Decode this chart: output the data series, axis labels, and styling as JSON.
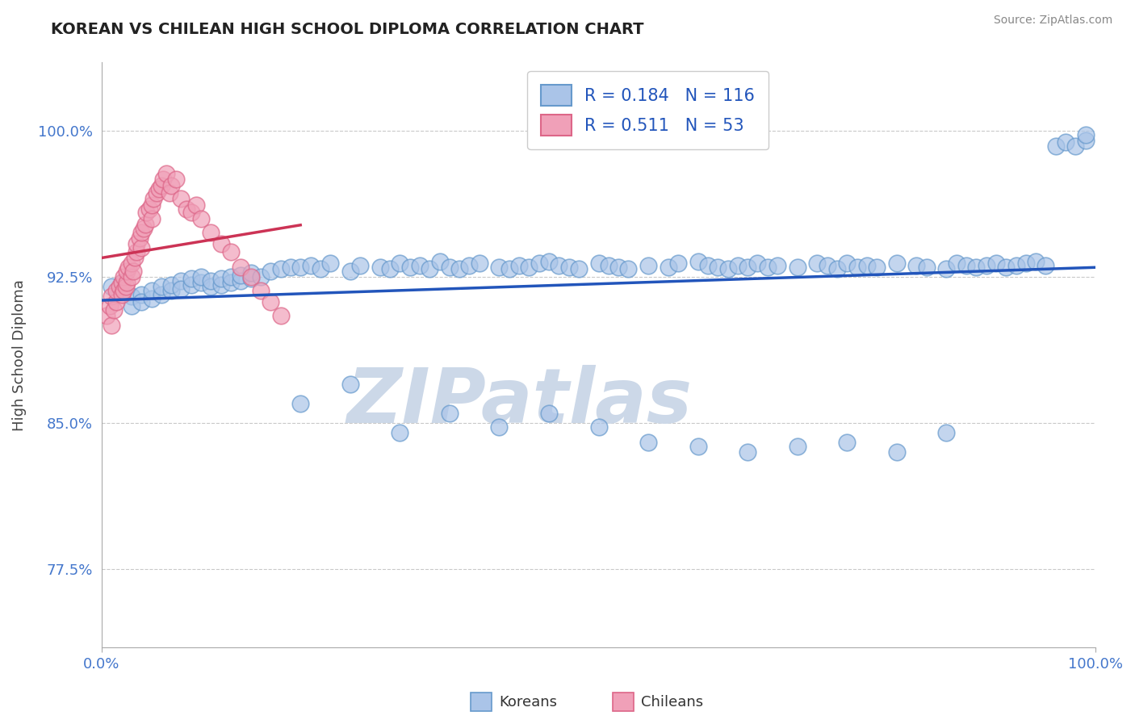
{
  "title": "KOREAN VS CHILEAN HIGH SCHOOL DIPLOMA CORRELATION CHART",
  "source": "Source: ZipAtlas.com",
  "ylabel": "High School Diploma",
  "xlim": [
    0.0,
    1.0
  ],
  "ylim": [
    0.735,
    1.035
  ],
  "yticks": [
    0.775,
    0.85,
    0.925,
    1.0
  ],
  "ytick_labels": [
    "77.5%",
    "85.0%",
    "92.5%",
    "100.0%"
  ],
  "xticks": [
    0.0,
    1.0
  ],
  "xtick_labels": [
    "0.0%",
    "100.0%"
  ],
  "korean_color": "#aac4e8",
  "chilean_color": "#f0a0b8",
  "korean_edge": "#6699cc",
  "chilean_edge": "#dd6688",
  "trend_korean_color": "#2255bb",
  "trend_chilean_color": "#cc3355",
  "axis_label_color": "#4477cc",
  "R_korean": 0.184,
  "N_korean": 116,
  "R_chilean": 0.511,
  "N_chilean": 53,
  "watermark": "ZIPatlas",
  "watermark_color": "#ccd8e8",
  "korean_x": [
    0.01,
    0.02,
    0.02,
    0.03,
    0.03,
    0.04,
    0.04,
    0.05,
    0.05,
    0.06,
    0.06,
    0.07,
    0.07,
    0.08,
    0.08,
    0.09,
    0.09,
    0.1,
    0.1,
    0.11,
    0.11,
    0.12,
    0.12,
    0.13,
    0.13,
    0.14,
    0.14,
    0.15,
    0.15,
    0.16,
    0.17,
    0.18,
    0.19,
    0.2,
    0.21,
    0.22,
    0.23,
    0.25,
    0.26,
    0.28,
    0.29,
    0.3,
    0.31,
    0.32,
    0.33,
    0.34,
    0.35,
    0.36,
    0.37,
    0.38,
    0.4,
    0.41,
    0.42,
    0.43,
    0.44,
    0.45,
    0.46,
    0.47,
    0.48,
    0.5,
    0.51,
    0.52,
    0.53,
    0.55,
    0.57,
    0.58,
    0.6,
    0.61,
    0.62,
    0.63,
    0.64,
    0.65,
    0.66,
    0.67,
    0.68,
    0.7,
    0.72,
    0.73,
    0.74,
    0.75,
    0.76,
    0.77,
    0.78,
    0.8,
    0.82,
    0.83,
    0.85,
    0.86,
    0.87,
    0.88,
    0.89,
    0.9,
    0.91,
    0.92,
    0.93,
    0.94,
    0.95,
    0.96,
    0.97,
    0.98,
    0.99,
    0.99,
    0.2,
    0.25,
    0.3,
    0.35,
    0.4,
    0.45,
    0.5,
    0.55,
    0.6,
    0.65,
    0.7,
    0.75,
    0.8,
    0.85
  ],
  "korean_y": [
    0.92,
    0.918,
    0.922,
    0.915,
    0.91,
    0.916,
    0.912,
    0.914,
    0.918,
    0.916,
    0.92,
    0.918,
    0.921,
    0.923,
    0.919,
    0.921,
    0.924,
    0.922,
    0.925,
    0.92,
    0.923,
    0.921,
    0.924,
    0.922,
    0.925,
    0.923,
    0.926,
    0.924,
    0.927,
    0.925,
    0.928,
    0.929,
    0.93,
    0.93,
    0.931,
    0.929,
    0.932,
    0.928,
    0.931,
    0.93,
    0.929,
    0.932,
    0.93,
    0.931,
    0.929,
    0.933,
    0.93,
    0.929,
    0.931,
    0.932,
    0.93,
    0.929,
    0.931,
    0.93,
    0.932,
    0.933,
    0.931,
    0.93,
    0.929,
    0.932,
    0.931,
    0.93,
    0.929,
    0.931,
    0.93,
    0.932,
    0.933,
    0.931,
    0.93,
    0.929,
    0.931,
    0.93,
    0.932,
    0.93,
    0.931,
    0.93,
    0.932,
    0.931,
    0.929,
    0.932,
    0.93,
    0.931,
    0.93,
    0.932,
    0.931,
    0.93,
    0.929,
    0.932,
    0.931,
    0.93,
    0.931,
    0.932,
    0.93,
    0.931,
    0.932,
    0.933,
    0.931,
    0.992,
    0.994,
    0.992,
    0.995,
    0.998,
    0.86,
    0.87,
    0.845,
    0.855,
    0.848,
    0.855,
    0.848,
    0.84,
    0.838,
    0.835,
    0.838,
    0.84,
    0.835,
    0.845
  ],
  "chilean_x": [
    0.005,
    0.008,
    0.01,
    0.01,
    0.012,
    0.015,
    0.015,
    0.018,
    0.02,
    0.02,
    0.022,
    0.022,
    0.024,
    0.025,
    0.025,
    0.027,
    0.03,
    0.03,
    0.032,
    0.033,
    0.035,
    0.035,
    0.038,
    0.04,
    0.04,
    0.042,
    0.044,
    0.045,
    0.048,
    0.05,
    0.05,
    0.052,
    0.055,
    0.058,
    0.06,
    0.062,
    0.065,
    0.068,
    0.07,
    0.075,
    0.08,
    0.085,
    0.09,
    0.095,
    0.1,
    0.11,
    0.12,
    0.13,
    0.14,
    0.15,
    0.16,
    0.17,
    0.18
  ],
  "chilean_y": [
    0.905,
    0.91,
    0.9,
    0.915,
    0.908,
    0.912,
    0.918,
    0.92,
    0.916,
    0.922,
    0.918,
    0.925,
    0.92,
    0.922,
    0.928,
    0.93,
    0.925,
    0.932,
    0.928,
    0.935,
    0.938,
    0.942,
    0.945,
    0.94,
    0.948,
    0.95,
    0.952,
    0.958,
    0.96,
    0.955,
    0.962,
    0.965,
    0.968,
    0.97,
    0.972,
    0.975,
    0.978,
    0.968,
    0.972,
    0.975,
    0.965,
    0.96,
    0.958,
    0.962,
    0.955,
    0.948,
    0.942,
    0.938,
    0.93,
    0.925,
    0.918,
    0.912,
    0.905
  ]
}
